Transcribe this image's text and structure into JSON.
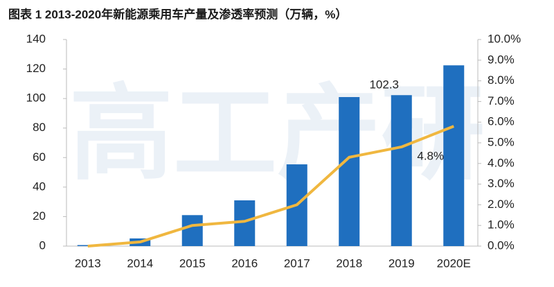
{
  "chart_data": {
    "type": "bar-line",
    "title": "图表 1   2013-2020年新能源乘用车产量及渗透率预测（万辆，%）",
    "watermark": "高工产研",
    "categories": [
      "2013",
      "2014",
      "2015",
      "2016",
      "2017",
      "2018",
      "2019",
      "2020E"
    ],
    "series": [
      {
        "type": "bar",
        "color": "#1f6fbf",
        "values": [
          0.7,
          5.2,
          21,
          31,
          55.4,
          101,
          102.3,
          122.5
        ],
        "value_labels": [
          null,
          null,
          null,
          null,
          null,
          null,
          "102.3",
          null
        ]
      },
      {
        "type": "line",
        "axis": "y2",
        "color": "#f0b73f",
        "values": [
          0,
          0.2,
          1.0,
          1.2,
          2.0,
          4.3,
          4.8,
          5.8
        ],
        "value_labels": [
          null,
          null,
          null,
          null,
          null,
          null,
          "4.8%",
          null
        ]
      }
    ],
    "ylim": [
      0,
      140
    ],
    "yticks": [
      0,
      20,
      40,
      60,
      80,
      100,
      120,
      140
    ],
    "y2lim": [
      0,
      10
    ],
    "y2ticks": [
      {
        "value": 0,
        "label": "0.0%"
      },
      {
        "value": 1,
        "label": "1.0%"
      },
      {
        "value": 2,
        "label": "2.0%"
      },
      {
        "value": 3,
        "label": "3.0%"
      },
      {
        "value": 4,
        "label": "4.0%"
      },
      {
        "value": 5,
        "label": "5.0%"
      },
      {
        "value": 6,
        "label": "6.0%"
      },
      {
        "value": 7,
        "label": "7.0%"
      },
      {
        "value": 8,
        "label": "8.0%"
      },
      {
        "value": 9,
        "label": "9.0%"
      },
      {
        "value": 10,
        "label": "10.0%"
      }
    ],
    "grid": false
  }
}
